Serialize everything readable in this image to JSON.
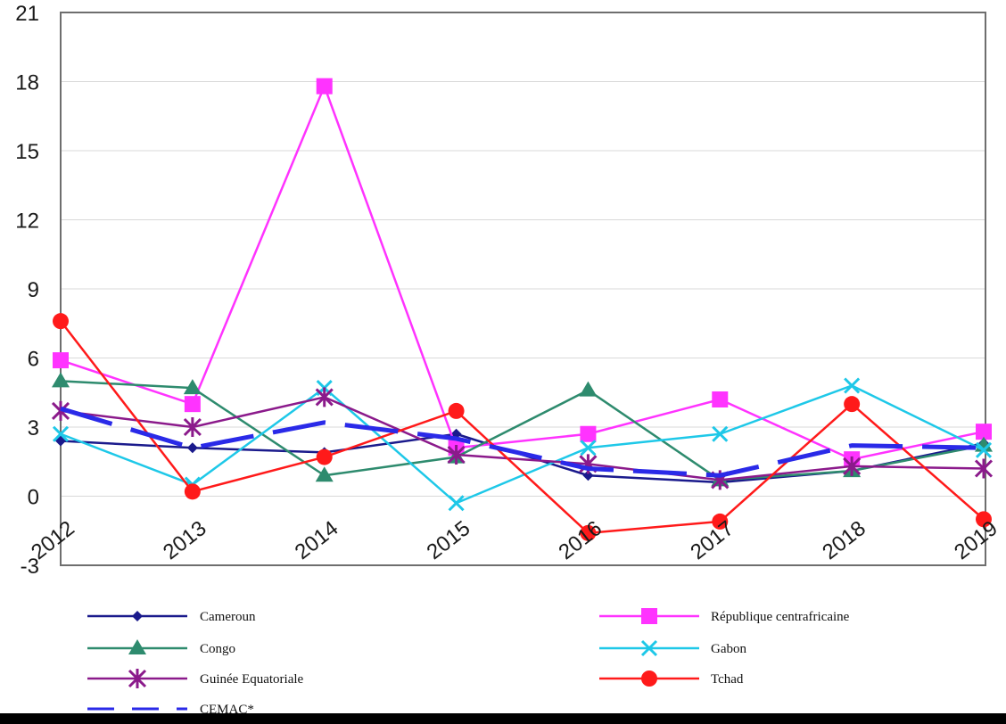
{
  "chart_data": {
    "type": "line",
    "title": "",
    "xlabel": "",
    "ylabel": "",
    "ylim": [
      -3,
      21
    ],
    "yticks": [
      -3,
      0,
      3,
      6,
      9,
      12,
      15,
      18,
      21
    ],
    "ytick_labels": [
      "-3",
      "0",
      "3",
      "6",
      "9",
      "12",
      "15",
      "18",
      "21"
    ],
    "categories": [
      "2012",
      "2013",
      "2014",
      "2015",
      "2016",
      "2017",
      "2018",
      "2019"
    ],
    "series": [
      {
        "name": "Cameroun",
        "color": "#1a1a8c",
        "marker": "diamond",
        "dash": "solid",
        "values": [
          2.4,
          2.1,
          1.9,
          2.7,
          0.9,
          0.6,
          1.1,
          2.3
        ]
      },
      {
        "name": "République centrafricaine",
        "color": "#ff33ff",
        "marker": "square",
        "dash": "solid",
        "values": [
          5.9,
          4.0,
          17.8,
          2.1,
          2.7,
          4.2,
          1.6,
          2.8
        ]
      },
      {
        "name": "Congo",
        "color": "#2e8b6e",
        "marker": "triangle",
        "dash": "solid",
        "values": [
          5.0,
          4.7,
          0.9,
          1.7,
          4.6,
          0.7,
          1.1,
          2.2
        ]
      },
      {
        "name": "Gabon",
        "color": "#1ec8e8",
        "marker": "x",
        "dash": "solid",
        "values": [
          2.7,
          0.5,
          4.7,
          -0.3,
          2.1,
          2.7,
          4.8,
          2.0
        ]
      },
      {
        "name": "Guinée Equatoriale",
        "color": "#8b1a8b",
        "marker": "star",
        "dash": "solid",
        "values": [
          3.7,
          3.0,
          4.3,
          1.8,
          1.4,
          0.7,
          1.3,
          1.2
        ]
      },
      {
        "name": "Tchad",
        "color": "#ff1a1a",
        "marker": "circle",
        "dash": "solid",
        "values": [
          7.6,
          0.2,
          1.7,
          3.7,
          -1.6,
          -1.1,
          4.0,
          -1.0
        ]
      },
      {
        "name": "CEMAC*",
        "color": "#2a2ae8",
        "marker": "none",
        "dash": "dashed",
        "values": [
          3.8,
          2.1,
          3.2,
          2.5,
          1.2,
          0.9,
          2.2,
          2.1
        ]
      }
    ],
    "legend": {
      "position": "bottom",
      "columns": 2
    }
  }
}
